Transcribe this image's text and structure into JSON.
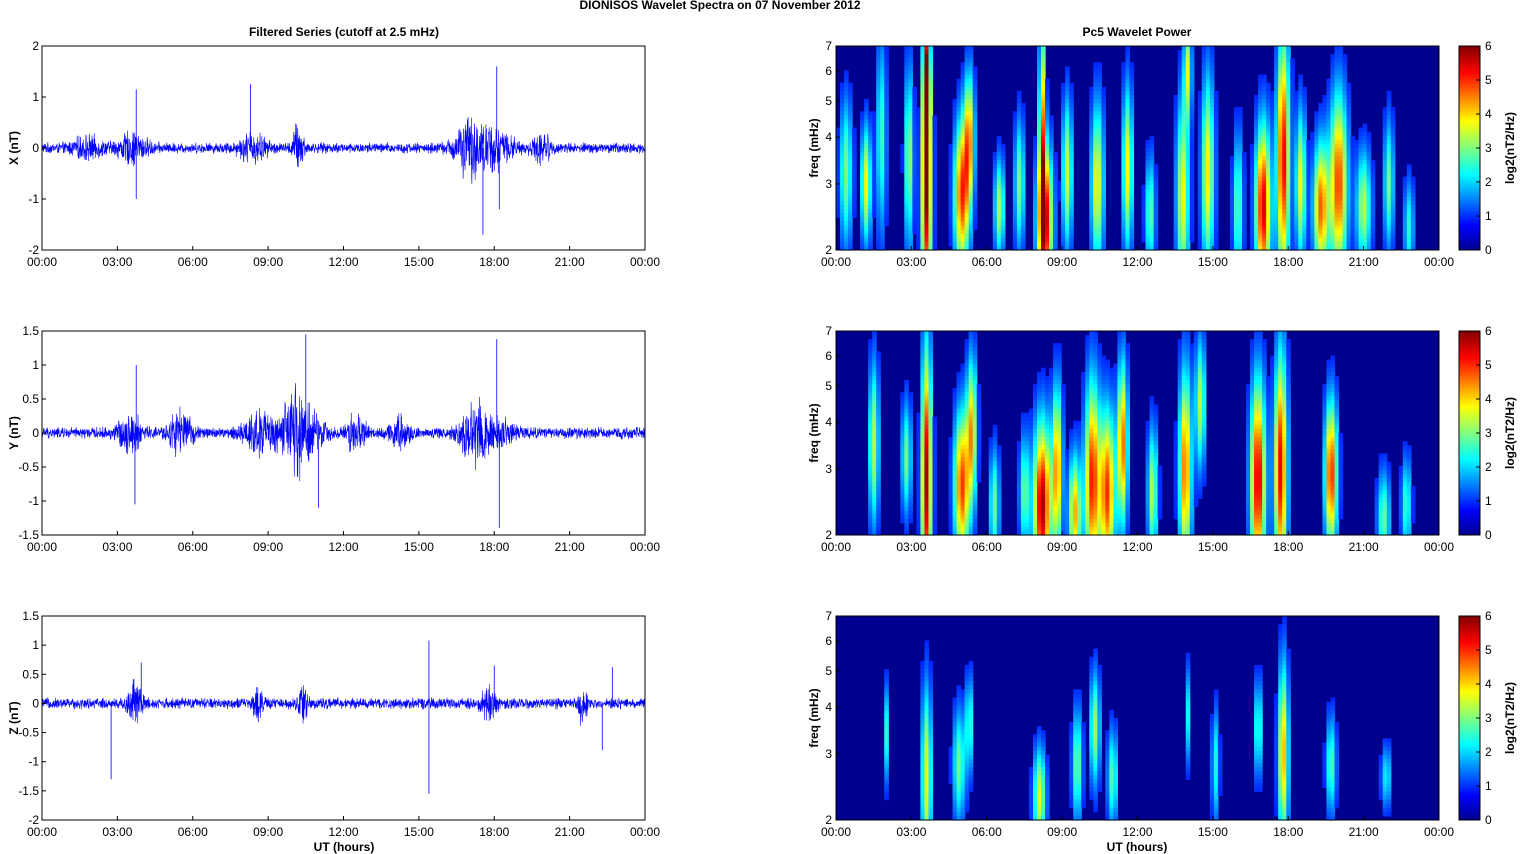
{
  "figure": {
    "title": "DIONISOS Wavelet Spectra on 07 November  2012",
    "left_column_title": "Filtered Series (cutoff at 2.5 mHz)",
    "right_column_title": "Pc5 Wavelet Power",
    "xlabel": "UT (hours)"
  },
  "colors": {
    "trace": "#0000ff",
    "axis": "#000000"
  },
  "chart_data": [
    {
      "type": "line",
      "component": "X",
      "ylabel": "X (nT)",
      "xlim": [
        0,
        24
      ],
      "ylim": [
        -2,
        2
      ],
      "xticks": [
        "00:00",
        "03:00",
        "06:00",
        "09:00",
        "12:00",
        "15:00",
        "18:00",
        "21:00",
        "00:00"
      ],
      "yticks": [
        "2",
        "1",
        "0",
        "-1",
        "-2"
      ],
      "base_amplitude_nT": 0.1,
      "bursts": [
        [
          1.8,
          0.35,
          0.6
        ],
        [
          3.6,
          0.5,
          0.6
        ],
        [
          8.4,
          0.5,
          0.55
        ],
        [
          10.2,
          1.0,
          0.2
        ],
        [
          16.9,
          0.7,
          0.5
        ],
        [
          17.5,
          0.5,
          0.9
        ],
        [
          18.1,
          0.4,
          0.7
        ],
        [
          19.9,
          0.5,
          0.35
        ]
      ],
      "spikes": [
        [
          3.75,
          1.15
        ],
        [
          3.75,
          -1.0
        ],
        [
          8.3,
          1.25
        ],
        [
          17.55,
          -1.7
        ],
        [
          18.1,
          1.6
        ],
        [
          18.2,
          -1.2
        ]
      ]
    },
    {
      "type": "line",
      "component": "Y",
      "ylabel": "Y (nT)",
      "xlim": [
        0,
        24
      ],
      "ylim": [
        -1.5,
        1.5
      ],
      "xticks": [
        "00:00",
        "03:00",
        "06:00",
        "09:00",
        "12:00",
        "15:00",
        "18:00",
        "21:00",
        "00:00"
      ],
      "yticks": [
        "1.5",
        "1",
        "0.5",
        "0",
        "-0.5",
        "-1",
        "-1.5"
      ],
      "base_amplitude_nT": 0.08,
      "bursts": [
        [
          3.5,
          0.5,
          0.5
        ],
        [
          5.5,
          0.6,
          0.45
        ],
        [
          8.6,
          0.6,
          0.55
        ],
        [
          10.2,
          1.2,
          0.75
        ],
        [
          12.5,
          0.6,
          0.35
        ],
        [
          14.2,
          0.5,
          0.35
        ],
        [
          17.2,
          0.8,
          0.55
        ],
        [
          18.0,
          0.4,
          0.8
        ]
      ],
      "spikes": [
        [
          3.75,
          1.0
        ],
        [
          3.7,
          -1.05
        ],
        [
          10.5,
          1.45
        ],
        [
          11.0,
          -1.1
        ],
        [
          18.1,
          1.38
        ],
        [
          18.2,
          -1.4
        ]
      ]
    },
    {
      "type": "line",
      "component": "Z",
      "ylabel": "Z (nT)",
      "xlim": [
        0,
        24
      ],
      "ylim": [
        -2,
        1.5
      ],
      "xticks": [
        "00:00",
        "03:00",
        "06:00",
        "09:00",
        "12:00",
        "15:00",
        "18:00",
        "21:00",
        "00:00"
      ],
      "yticks": [
        "1.5",
        "1",
        "0.5",
        "0",
        "-0.5",
        "-1",
        "-1.5",
        "-2"
      ],
      "base_amplitude_nT": 0.09,
      "bursts": [
        [
          3.7,
          0.7,
          0.3
        ],
        [
          8.6,
          0.5,
          0.2
        ],
        [
          10.4,
          0.6,
          0.22
        ],
        [
          17.8,
          0.5,
          0.3
        ],
        [
          21.5,
          0.6,
          0.2
        ]
      ],
      "spikes": [
        [
          2.75,
          -1.3
        ],
        [
          3.95,
          0.7
        ],
        [
          15.4,
          1.08
        ],
        [
          15.4,
          -1.55
        ],
        [
          18.0,
          0.65
        ],
        [
          22.3,
          -0.8
        ],
        [
          22.7,
          0.62
        ]
      ]
    },
    {
      "type": "heatmap",
      "component": "X",
      "ylabel": "freq (mHz)",
      "xlim": [
        0,
        24
      ],
      "ylim": [
        2,
        7
      ],
      "yscale": "log",
      "xticks": [
        "00:00",
        "03:00",
        "06:00",
        "09:00",
        "12:00",
        "15:00",
        "18:00",
        "21:00",
        "00:00"
      ],
      "yticks": [
        "7",
        "6",
        "5",
        "4",
        "3",
        "2"
      ],
      "colorbar": {
        "label": "log2(nT2/Hz)",
        "ticks": [
          "6",
          "5",
          "4",
          "3",
          "2",
          "1",
          "0"
        ],
        "range": [
          0,
          6
        ],
        "colormap": "jet"
      },
      "blobs": [
        [
          0.4,
          2.6,
          3.2,
          0.25,
          0.45
        ],
        [
          1.2,
          3.5,
          3.0,
          0.2,
          0.35
        ],
        [
          1.8,
          2.2,
          4.0,
          0.2,
          0.6
        ],
        [
          2.9,
          2.9,
          3.5,
          0.18,
          0.55
        ],
        [
          3.6,
          6.0,
          3.0,
          0.2,
          0.8
        ],
        [
          3.6,
          4.5,
          5.5,
          0.12,
          0.4
        ],
        [
          5.0,
          4.8,
          2.8,
          0.3,
          0.45
        ],
        [
          5.3,
          3.8,
          4.0,
          0.2,
          0.4
        ],
        [
          6.5,
          3.0,
          2.6,
          0.2,
          0.3
        ],
        [
          7.3,
          2.6,
          3.0,
          0.2,
          0.4
        ],
        [
          8.3,
          6.0,
          2.4,
          0.3,
          0.45
        ],
        [
          8.2,
          4.0,
          4.5,
          0.12,
          0.6
        ],
        [
          9.2,
          3.2,
          3.2,
          0.2,
          0.45
        ],
        [
          10.4,
          3.5,
          3.0,
          0.25,
          0.5
        ],
        [
          11.6,
          3.5,
          3.3,
          0.2,
          0.5
        ],
        [
          12.5,
          2.5,
          2.5,
          0.2,
          0.35
        ],
        [
          13.8,
          3.5,
          2.8,
          0.25,
          0.6
        ],
        [
          14.8,
          3.6,
          3.2,
          0.25,
          0.6
        ],
        [
          16.0,
          2.5,
          2.6,
          0.2,
          0.45
        ],
        [
          17.0,
          5.5,
          2.6,
          0.3,
          0.5
        ],
        [
          17.8,
          5.3,
          3.5,
          0.25,
          0.75
        ],
        [
          18.5,
          3.5,
          3.0,
          0.2,
          0.45
        ],
        [
          19.3,
          4.5,
          2.6,
          0.3,
          0.4
        ],
        [
          20.0,
          4.8,
          3.0,
          0.35,
          0.55
        ],
        [
          21.0,
          3.0,
          2.6,
          0.3,
          0.35
        ],
        [
          22.0,
          2.5,
          3.0,
          0.2,
          0.4
        ],
        [
          22.8,
          2.0,
          2.3,
          0.2,
          0.3
        ],
        [
          14.0,
          3.0,
          6.0,
          0.15,
          0.3
        ]
      ]
    },
    {
      "type": "heatmap",
      "component": "Y",
      "ylabel": "freq (mHz)",
      "xlim": [
        0,
        24
      ],
      "ylim": [
        2,
        7
      ],
      "yscale": "log",
      "xticks": [
        "00:00",
        "03:00",
        "06:00",
        "09:00",
        "12:00",
        "15:00",
        "18:00",
        "21:00",
        "00:00"
      ],
      "yticks": [
        "7",
        "6",
        "5",
        "4",
        "3",
        "2"
      ],
      "colorbar": {
        "label": "log2(nT2/Hz)",
        "ticks": [
          "6",
          "5",
          "4",
          "3",
          "2",
          "1",
          "0"
        ],
        "range": [
          0,
          6
        ],
        "colormap": "jet"
      },
      "blobs": [
        [
          1.5,
          3.0,
          3.5,
          0.2,
          0.5
        ],
        [
          2.8,
          2.5,
          3.2,
          0.2,
          0.35
        ],
        [
          3.6,
          5.8,
          2.8,
          0.2,
          0.8
        ],
        [
          5.0,
          4.8,
          2.7,
          0.3,
          0.45
        ],
        [
          5.4,
          3.8,
          3.8,
          0.2,
          0.45
        ],
        [
          6.3,
          2.5,
          2.4,
          0.2,
          0.35
        ],
        [
          7.5,
          2.5,
          2.6,
          0.2,
          0.35
        ],
        [
          8.2,
          5.8,
          2.4,
          0.35,
          0.5
        ],
        [
          8.8,
          4.2,
          3.0,
          0.2,
          0.5
        ],
        [
          9.5,
          4.0,
          2.3,
          0.25,
          0.35
        ],
        [
          10.2,
          5.0,
          2.8,
          0.3,
          0.6
        ],
        [
          10.8,
          4.8,
          2.6,
          0.3,
          0.5
        ],
        [
          11.4,
          4.5,
          3.5,
          0.2,
          0.5
        ],
        [
          12.6,
          3.0,
          2.6,
          0.2,
          0.4
        ],
        [
          13.9,
          4.5,
          3.0,
          0.25,
          0.6
        ],
        [
          14.5,
          3.0,
          4.5,
          0.2,
          0.4
        ],
        [
          16.8,
          5.5,
          2.8,
          0.3,
          0.6
        ],
        [
          17.7,
          5.3,
          3.0,
          0.25,
          0.7
        ],
        [
          19.7,
          5.0,
          2.9,
          0.25,
          0.45
        ],
        [
          21.8,
          2.5,
          2.2,
          0.25,
          0.3
        ],
        [
          22.7,
          2.2,
          2.4,
          0.2,
          0.3
        ]
      ]
    },
    {
      "type": "heatmap",
      "component": "Z",
      "ylabel": "freq (mHz)",
      "xlim": [
        0,
        24
      ],
      "ylim": [
        2,
        7
      ],
      "yscale": "log",
      "xticks": [
        "00:00",
        "03:00",
        "06:00",
        "09:00",
        "12:00",
        "15:00",
        "18:00",
        "21:00",
        "00:00"
      ],
      "yticks": [
        "7",
        "6",
        "5",
        "4",
        "3",
        "2"
      ],
      "colorbar": {
        "label": "log2(nT2/Hz)",
        "ticks": [
          "6",
          "5",
          "4",
          "3",
          "2",
          "1",
          "0"
        ],
        "range": [
          0,
          6
        ],
        "colormap": "jet"
      },
      "blobs": [
        [
          2.0,
          2.0,
          3.4,
          0.12,
          0.3
        ],
        [
          3.6,
          3.4,
          2.6,
          0.2,
          0.55
        ],
        [
          4.9,
          2.5,
          2.8,
          0.25,
          0.35
        ],
        [
          5.3,
          2.2,
          3.6,
          0.15,
          0.3
        ],
        [
          8.1,
          3.3,
          2.3,
          0.25,
          0.3
        ],
        [
          9.6,
          2.6,
          2.8,
          0.2,
          0.35
        ],
        [
          10.3,
          2.8,
          3.5,
          0.2,
          0.35
        ],
        [
          11.0,
          2.4,
          2.6,
          0.2,
          0.3
        ],
        [
          14.0,
          1.8,
          3.8,
          0.12,
          0.3
        ],
        [
          15.1,
          2.0,
          2.8,
          0.15,
          0.35
        ],
        [
          16.8,
          2.4,
          3.5,
          0.15,
          0.3
        ],
        [
          17.8,
          4.0,
          3.0,
          0.2,
          0.55
        ],
        [
          19.7,
          2.4,
          2.8,
          0.2,
          0.3
        ],
        [
          21.9,
          1.8,
          2.6,
          0.2,
          0.2
        ]
      ]
    }
  ]
}
